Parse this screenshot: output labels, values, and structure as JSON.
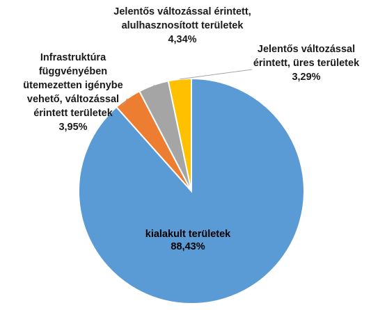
{
  "chart_data": {
    "type": "pie",
    "title": "",
    "start": "12 o'clock, clockwise",
    "slices": [
      {
        "lines": [
          "kialakult területek"
        ],
        "pct_label": "88,43%",
        "value": 88.43,
        "color": "#5B9BD5"
      },
      {
        "lines": [
          "Infrastruktúra",
          "függvényében",
          "ütemezetten igénybe",
          "vehető, változással",
          "érintett területek"
        ],
        "pct_label": "3,95%",
        "value": 3.95,
        "color": "#ED7D31"
      },
      {
        "lines": [
          "Jelentős változással érintett,",
          "alulhasznosított területek"
        ],
        "pct_label": "4,34%",
        "value": 4.34,
        "color": "#A5A5A5"
      },
      {
        "lines": [
          "Jelentős változással",
          "érintett, üres területek"
        ],
        "pct_label": "3,29%",
        "value": 3.29,
        "color": "#FFC000"
      }
    ],
    "legend": "none",
    "data_labels": "outside with leader lines for small slices, inside for largest slice"
  }
}
